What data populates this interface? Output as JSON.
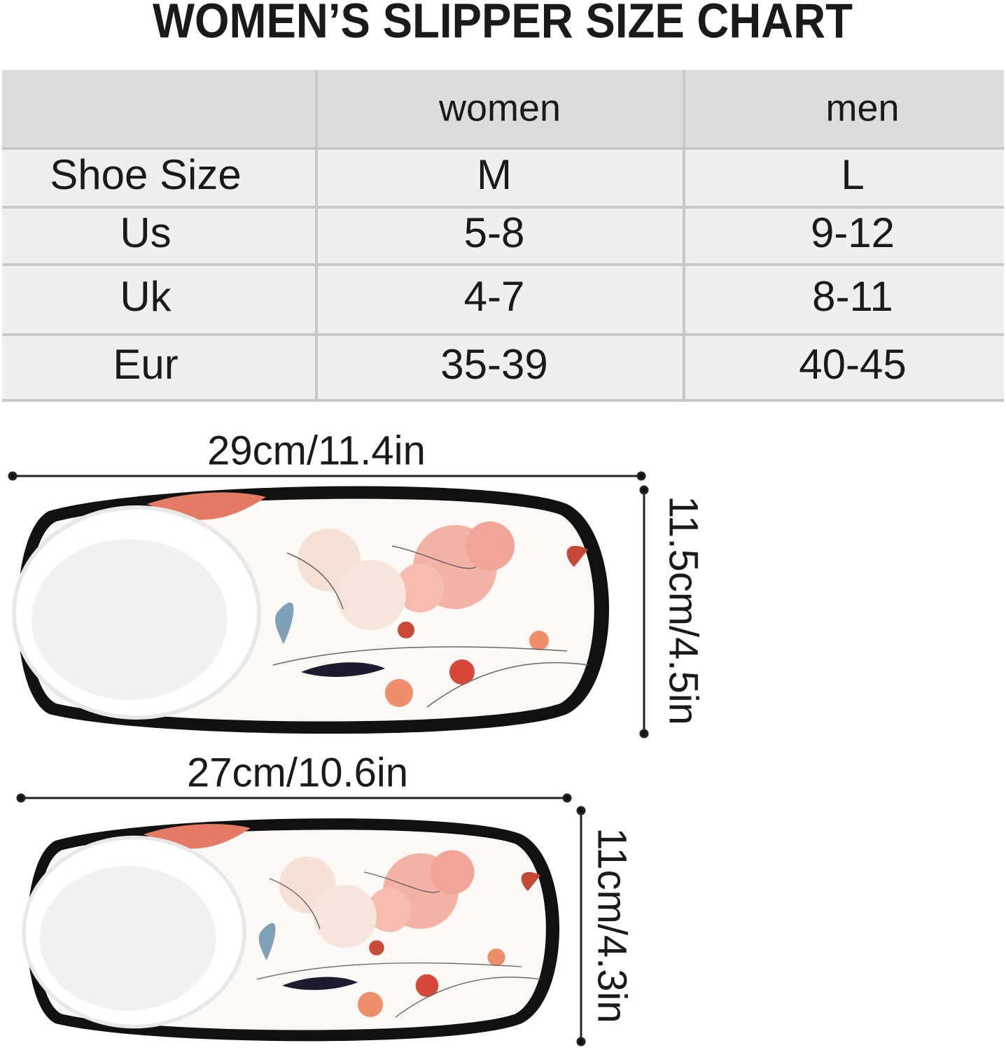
{
  "title": "WOMEN’S SLIPPER SIZE CHART",
  "table": {
    "header": [
      "women",
      "men"
    ],
    "rows": [
      [
        "Shoe Size",
        "M",
        "L"
      ],
      [
        "Us",
        "5-8",
        "9-12"
      ],
      [
        "Uk",
        "4-7",
        "8-11"
      ],
      [
        "Eur",
        "35-39",
        "40-45"
      ]
    ]
  },
  "dimensions": {
    "large": {
      "length": "29cm/11.4in",
      "width": "11.5cm/4.5in"
    },
    "small": {
      "length": "27cm/10.6in",
      "width": "11cm/4.3in"
    }
  }
}
